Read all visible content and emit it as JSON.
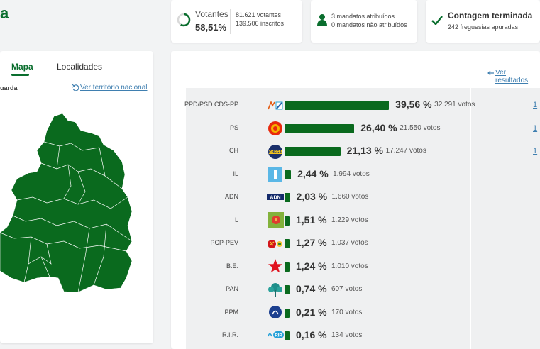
{
  "header": {
    "brand_fragment": "a",
    "votantes": {
      "label": "Votantes",
      "percent": "58,51%",
      "line1": "81.621 votantes",
      "line2": "139.506 inscritos"
    },
    "mandatos": {
      "line1": "3 mandatos atribuídos",
      "line2": "0 mandatos não atribuídos"
    },
    "contagem": {
      "title": "Contagem terminada",
      "subtitle": "242 freguesias apuradas"
    }
  },
  "map_panel": {
    "tabs": [
      {
        "label": "Mapa"
      },
      {
        "label": "Localidades"
      }
    ],
    "district": "uarda",
    "national_link": "Ver território nacional"
  },
  "results": {
    "back_link": "Ver resultados",
    "rows": [
      {
        "party": "PPD/PSD.CDS-PP",
        "percent": "39,56 %",
        "votes": "32.291 votos",
        "mandates": "1",
        "value": 39.56
      },
      {
        "party": "PS",
        "percent": "26,40 %",
        "votes": "21.550 votos",
        "mandates": "1",
        "value": 26.4
      },
      {
        "party": "CH",
        "percent": "21,13 %",
        "votes": "17.247 votos",
        "mandates": "1",
        "value": 21.13
      },
      {
        "party": "IL",
        "percent": "2,44 %",
        "votes": "1.994 votos",
        "mandates": "",
        "value": 2.44
      },
      {
        "party": "ADN",
        "percent": "2,03 %",
        "votes": "1.660 votos",
        "mandates": "",
        "value": 2.03
      },
      {
        "party": "L",
        "percent": "1,51 %",
        "votes": "1.229 votos",
        "mandates": "",
        "value": 1.51
      },
      {
        "party": "PCP-PEV",
        "percent": "1,27 %",
        "votes": "1.037 votos",
        "mandates": "",
        "value": 1.27
      },
      {
        "party": "B.E.",
        "percent": "1,24 %",
        "votes": "1.010 votos",
        "mandates": "",
        "value": 1.24
      },
      {
        "party": "PAN",
        "percent": "0,74 %",
        "votes": "607 votos",
        "mandates": "",
        "value": 0.74
      },
      {
        "party": "PPM",
        "percent": "0,21 %",
        "votes": "170 votos",
        "mandates": "",
        "value": 0.21
      },
      {
        "party": "R.I.R.",
        "percent": "0,16 %",
        "votes": "134 votos",
        "mandates": "",
        "value": 0.16
      }
    ]
  },
  "colors": {
    "accent": "#0a6e2e",
    "bar": "#0a6a1e",
    "link": "#3f7fb0",
    "map_fill": "#0a6a1e"
  }
}
